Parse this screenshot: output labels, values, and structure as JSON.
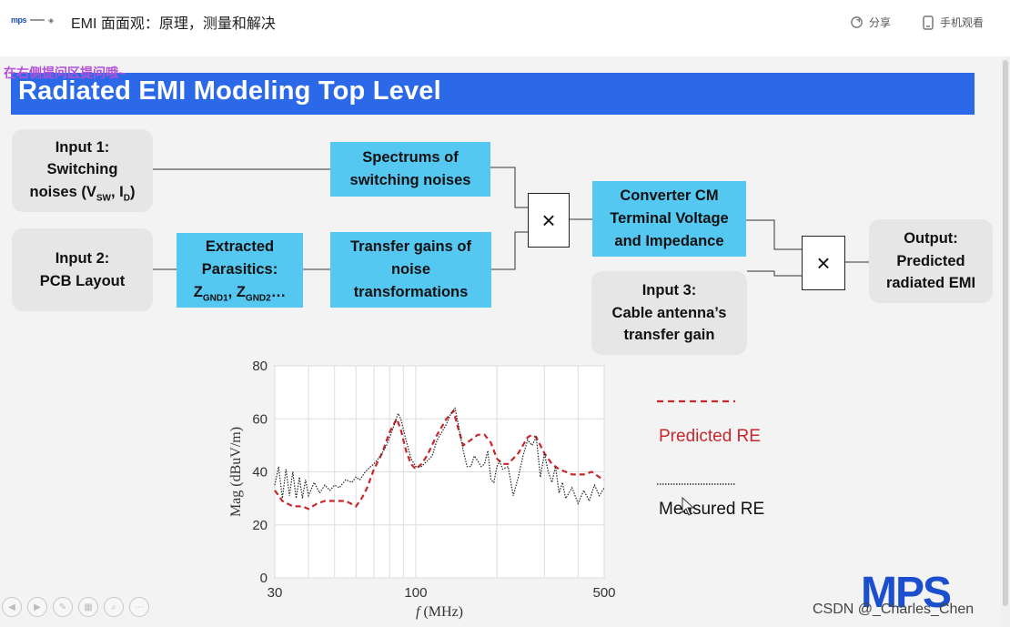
{
  "header": {
    "logo_text": "mps",
    "title": "EMI 面面观：原理，测量和解决",
    "share_label": "分享",
    "mobile_label": "手机观看"
  },
  "overlay_tip": "在右侧提问区提问哦~",
  "slide": {
    "title": "Radiated EMI Modeling Top Level",
    "input1": {
      "line1": "Input 1:",
      "line2": "Switching",
      "line3_prefix": "noises (V",
      "sub_sw": "SW",
      "mid": ", I",
      "sub_d": "D",
      "suffix": ")"
    },
    "input2": {
      "line1": "Input 2:",
      "line2": "PCB Layout"
    },
    "extracted": {
      "line1": "Extracted",
      "line2": "Parasitics:",
      "z1": "Z",
      "sub1": "GND1",
      "sep": ", ",
      "z2": "Z",
      "sub2": "GND2",
      "tail": "…"
    },
    "spectrums": {
      "line1": "Spectrums of",
      "line2": "switching noises"
    },
    "transfer": {
      "line1": "Transfer gains of",
      "line2": "noise",
      "line3": "transformations"
    },
    "multiply_symbol": "×",
    "converter": {
      "line1": "Converter CM",
      "line2": "Terminal Voltage",
      "line3": "and Impedance"
    },
    "input3": {
      "line1": "Input 3:",
      "line2": "Cable antenna’s",
      "line3": "transfer gain"
    },
    "output": {
      "line1": "Output:",
      "line2": "Predicted",
      "line3": "radiated EMI"
    },
    "legend": {
      "predicted": "Predicted RE",
      "measured": "Measured RE"
    },
    "brand_logo": "MPS"
  },
  "colors": {
    "banner": "#2c69e9",
    "cyan_box": "#55c8f2",
    "grey_box": "#e6e6e6",
    "predicted": "#c8282c",
    "measured": "#222222"
  },
  "watermark": "CSDN @_Charles_Chen",
  "chart_data": {
    "type": "line",
    "xlabel_italic": "f",
    "xlabel_rest": " (MHz)",
    "ylabel": "Mag (dBuV/m)",
    "x_scale": "log",
    "xlim": [
      30,
      500
    ],
    "ylim": [
      0,
      80
    ],
    "xticks": [
      30,
      100,
      500
    ],
    "yticks": [
      0,
      20,
      40,
      60,
      80
    ],
    "grid": true,
    "series": [
      {
        "name": "Predicted RE",
        "style": "dashed",
        "x": [
          30,
          32,
          35,
          38,
          40,
          43,
          46,
          50,
          55,
          60,
          63,
          66,
          70,
          75,
          80,
          85,
          88,
          92,
          96,
          100,
          105,
          110,
          120,
          130,
          138,
          145,
          150,
          160,
          170,
          180,
          190,
          200,
          210,
          220,
          240,
          260,
          270,
          280,
          300,
          320,
          340,
          360,
          380,
          400,
          420,
          450,
          480,
          500
        ],
        "y": [
          33,
          29,
          27,
          27,
          26,
          28,
          29,
          29,
          29,
          27,
          30,
          34,
          41,
          47,
          55,
          60,
          56,
          48,
          43,
          41,
          43,
          46,
          54,
          60,
          63,
          55,
          50,
          52,
          54,
          54,
          51,
          45,
          43,
          43,
          47,
          53,
          54,
          53,
          47,
          43,
          41,
          40,
          39,
          39,
          39,
          40,
          38,
          37
        ]
      },
      {
        "name": "Measured RE",
        "style": "dotted",
        "x": [
          30,
          31,
          32,
          33,
          34,
          35,
          36,
          37,
          38,
          39,
          40,
          42,
          44,
          46,
          48,
          50,
          52,
          55,
          58,
          60,
          62,
          65,
          68,
          70,
          74,
          78,
          82,
          86,
          88,
          92,
          96,
          100,
          105,
          110,
          115,
          120,
          125,
          130,
          135,
          140,
          145,
          150,
          155,
          160,
          165,
          170,
          175,
          180,
          185,
          190,
          195,
          200,
          205,
          210,
          220,
          230,
          240,
          250,
          260,
          270,
          280,
          290,
          300,
          310,
          320,
          330,
          340,
          350,
          360,
          380,
          400,
          420,
          440,
          460,
          480,
          500
        ],
        "y": [
          35,
          42,
          30,
          41,
          31,
          40,
          30,
          38,
          30,
          37,
          31,
          36,
          32,
          35,
          33,
          35,
          34,
          37,
          36,
          38,
          37,
          40,
          42,
          43,
          46,
          50,
          56,
          62,
          60,
          52,
          45,
          42,
          42,
          44,
          46,
          52,
          55,
          58,
          62,
          64,
          56,
          48,
          42,
          42,
          46,
          44,
          42,
          43,
          48,
          37,
          36,
          42,
          44,
          41,
          42,
          31,
          38,
          46,
          52,
          50,
          53,
          38,
          47,
          40,
          36,
          42,
          32,
          36,
          30,
          34,
          28,
          33,
          29,
          35,
          31,
          34
        ]
      }
    ]
  }
}
